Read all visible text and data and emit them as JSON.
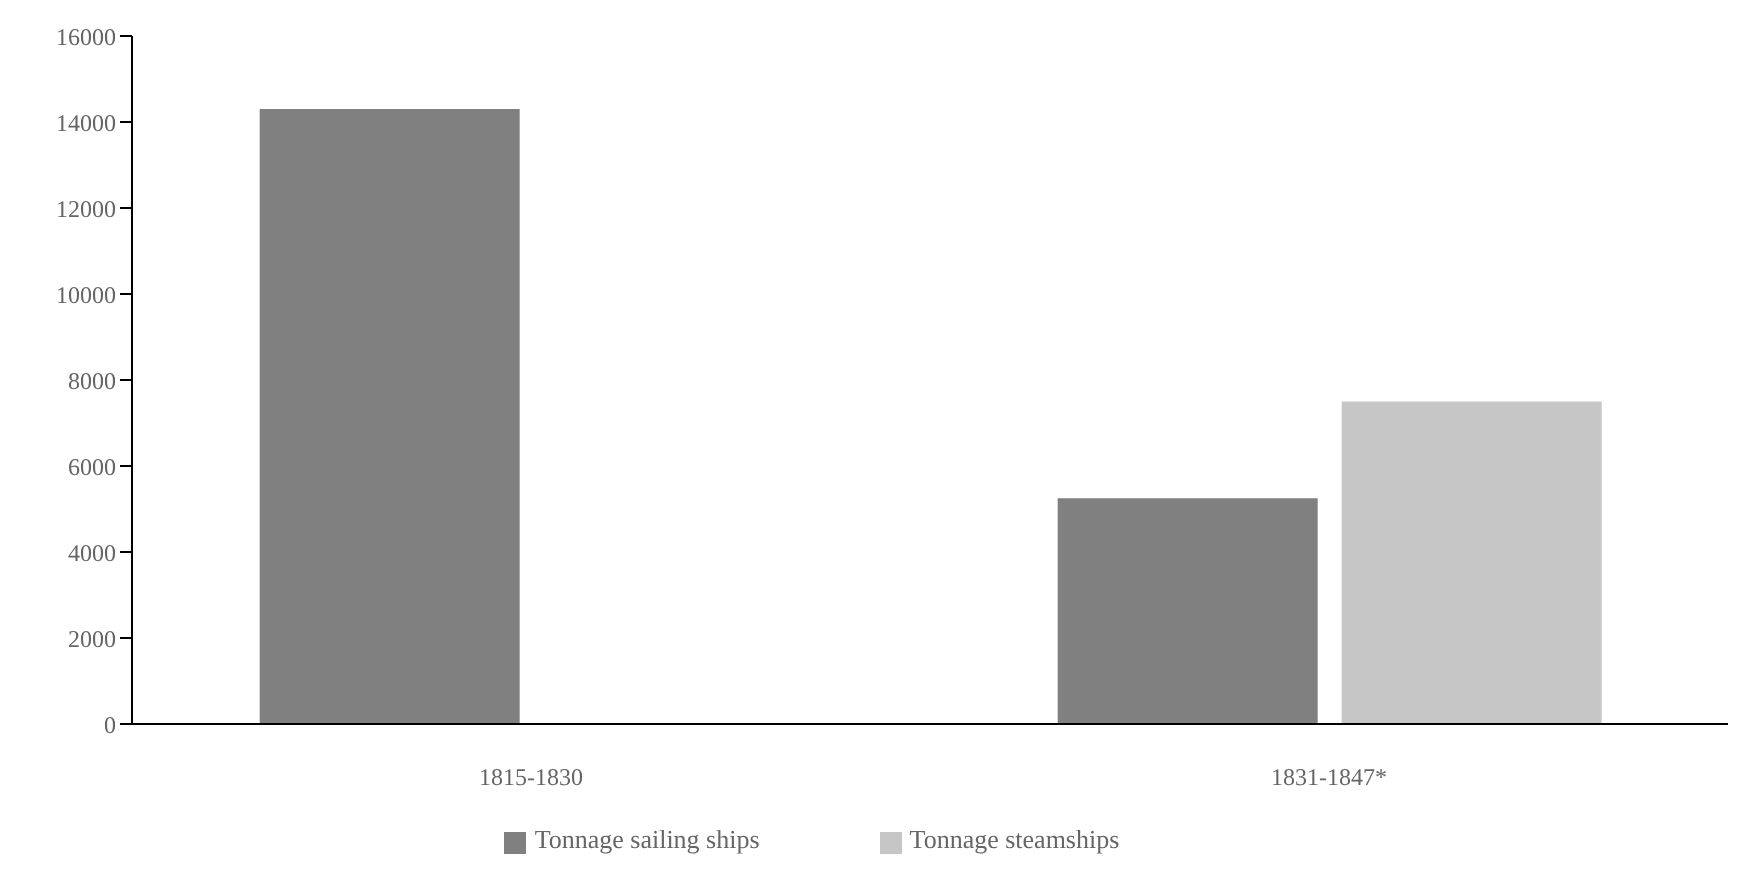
{
  "chart_data": {
    "type": "bar",
    "categories": [
      "1815-1830",
      "1831-1847*"
    ],
    "series": [
      {
        "name": "Tonnage sailing ships",
        "color": "#808080",
        "values": [
          14300,
          5250
        ]
      },
      {
        "name": "Tonnage steamships",
        "color": "#c6c6c6",
        "values": [
          null,
          7500
        ]
      }
    ],
    "ylim": [
      0,
      16000
    ],
    "yticks": [
      0,
      2000,
      4000,
      6000,
      8000,
      10000,
      12000,
      14000,
      16000
    ],
    "grid": false,
    "legend": "bottom"
  }
}
